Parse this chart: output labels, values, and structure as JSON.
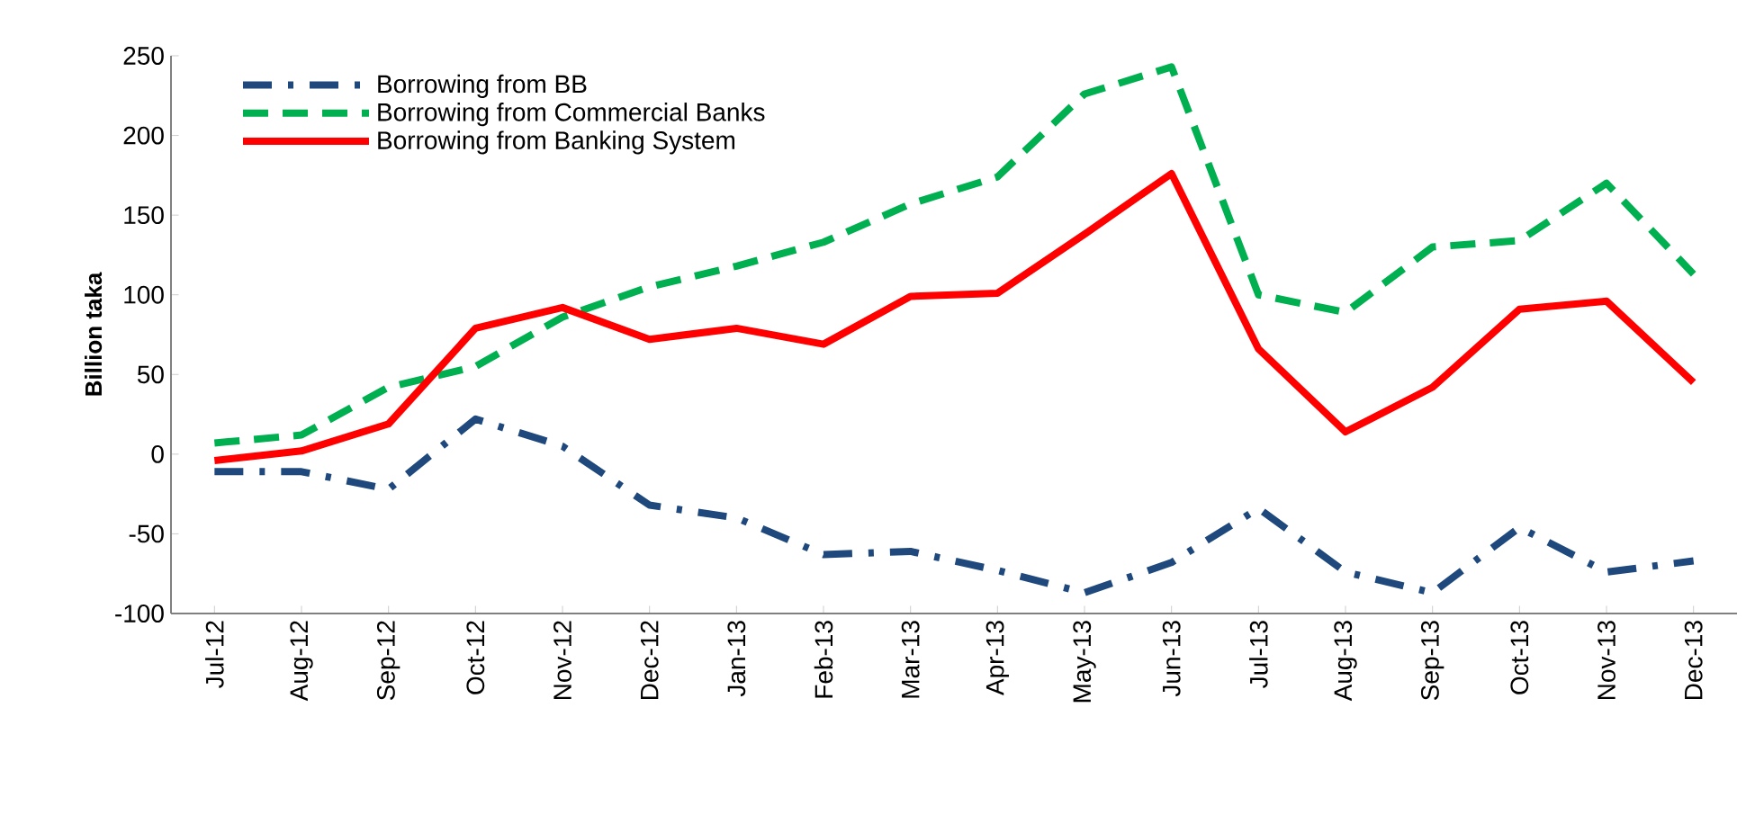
{
  "chart_data": {
    "type": "line",
    "ylabel": "Billion taka",
    "categories": [
      "Jul-12",
      "Aug-12",
      "Sep-12",
      "Oct-12",
      "Nov-12",
      "Dec-12",
      "Jan-13",
      "Feb-13",
      "Mar-13",
      "Apr-13",
      "May-13",
      "Jun-13",
      "Jul-13",
      "Aug-13",
      "Sep-13",
      "Oct-13",
      "Nov-13",
      "Dec-13"
    ],
    "series": [
      {
        "name": "Borrowing from BB",
        "color": "#1f497d",
        "line_style": "dashdot",
        "values": [
          -11,
          -11,
          -22,
          22,
          5,
          -32,
          -40,
          -63,
          -61,
          -73,
          -87,
          -68,
          -34,
          -74,
          -87,
          -46,
          -74,
          -67
        ]
      },
      {
        "name": "Borrowing from Commercial Banks",
        "color": "#00b050",
        "line_style": "dashed",
        "values": [
          7,
          12,
          42,
          55,
          86,
          105,
          118,
          133,
          157,
          174,
          226,
          243,
          100,
          89,
          130,
          134,
          170,
          113
        ]
      },
      {
        "name": "Borrowing from Banking System",
        "color": "#ff0000",
        "line_style": "solid",
        "values": [
          -4,
          2,
          19,
          79,
          92,
          72,
          79,
          69,
          99,
          101,
          138,
          176,
          66,
          14,
          42,
          91,
          96,
          45
        ]
      }
    ],
    "ylim": [
      -100,
      250
    ],
    "yticks": [
      -100,
      -50,
      0,
      50,
      100,
      150,
      200,
      250
    ],
    "grid": false,
    "legend": "top left",
    "marker": "none"
  }
}
